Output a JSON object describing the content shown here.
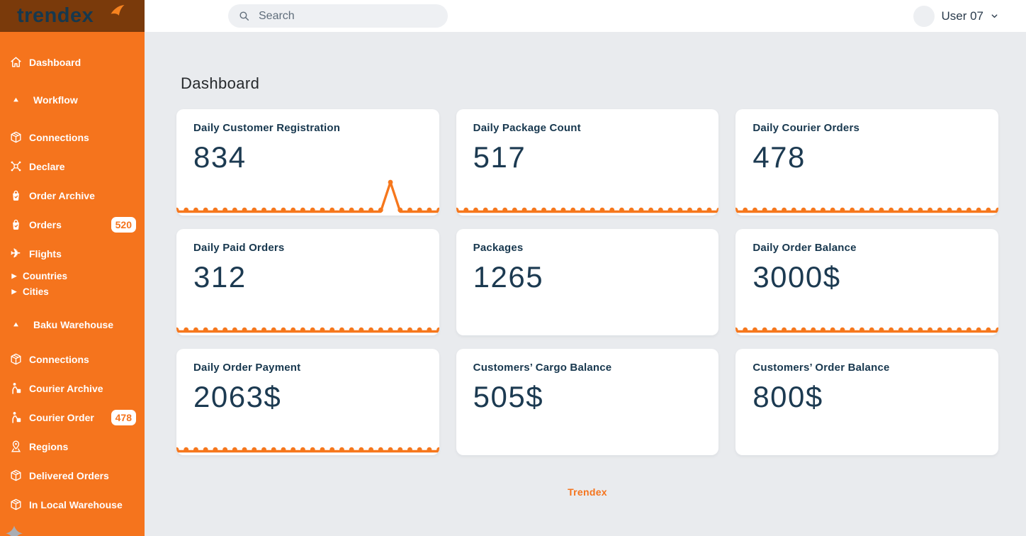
{
  "app": {
    "brand": "trendex",
    "colors": {
      "accent": "#f5741d",
      "navy": "#17374e",
      "logo_bg": "#7a3a0b",
      "sidebar_bg": "#f5741d",
      "content_bg": "#e9ebee"
    }
  },
  "topbar": {
    "search_placeholder": "Search",
    "user_label": "User 07"
  },
  "sidebar": {
    "items": [
      {
        "label": "Dashboard",
        "icon": "home-icon",
        "variant": "active first",
        "badge": null
      },
      {
        "label": "Workflow",
        "icon": "triangle-up-icon",
        "variant": "gap section",
        "badge": null
      },
      {
        "label": "Connections",
        "icon": "package-icon",
        "variant": "gap",
        "badge": null
      },
      {
        "label": "Declare",
        "icon": "drone-icon",
        "variant": "",
        "badge": null
      },
      {
        "label": "Order Archive",
        "icon": "bag-icon",
        "variant": "",
        "badge": null
      },
      {
        "label": "Orders",
        "icon": "bag-icon",
        "variant": "",
        "badge": "520"
      },
      {
        "label": "Flights",
        "icon": "plane-icon",
        "variant": "",
        "badge": null
      },
      {
        "label": "Countries",
        "icon": "caret-right-icon",
        "variant": "sub",
        "badge": null
      },
      {
        "label": "Cities",
        "icon": "caret-right-icon",
        "variant": "sub",
        "badge": null
      },
      {
        "label": "Baku Warehouse",
        "icon": "triangle-up-icon",
        "variant": "gap2 section",
        "badge": null
      },
      {
        "label": "Connections",
        "icon": "package-icon",
        "variant": "gap3",
        "badge": null
      },
      {
        "label": "Courier Archive",
        "icon": "courier-icon",
        "variant": "",
        "badge": null
      },
      {
        "label": "Courier Order",
        "icon": "courier-icon",
        "variant": "",
        "badge": "478"
      },
      {
        "label": "Regions",
        "icon": "map-pin-icon",
        "variant": "",
        "badge": null
      },
      {
        "label": "Delivered Orders",
        "icon": "package-icon",
        "variant": "",
        "badge": null
      },
      {
        "label": "In Local Warehouse",
        "icon": "package-icon",
        "variant": "",
        "badge": null
      }
    ]
  },
  "page": {
    "title": "Dashboard"
  },
  "cards": {
    "spark_color": "#f6771c",
    "items": [
      {
        "title": "Daily Customer Registration",
        "value": "834",
        "spark": [
          0,
          0,
          0,
          0,
          0,
          0,
          0,
          0,
          0,
          0,
          0,
          0,
          0,
          0,
          0,
          0,
          0,
          0,
          0,
          0,
          0,
          0,
          1,
          0,
          0,
          0,
          0,
          0
        ]
      },
      {
        "title": "Daily Package Count",
        "value": "517",
        "spark": [
          0,
          0,
          0,
          0,
          0,
          0,
          0,
          0,
          0,
          0,
          0,
          0,
          0,
          0,
          0,
          0,
          0,
          0,
          0,
          0,
          0,
          0,
          0,
          0,
          0,
          0,
          0,
          0
        ]
      },
      {
        "title": "Daily Courier Orders",
        "value": "478",
        "spark": [
          0,
          0,
          0,
          0,
          0,
          0,
          0,
          0,
          0,
          0,
          0,
          0,
          0,
          0,
          0,
          0,
          0,
          0,
          0,
          0,
          0,
          0,
          0,
          0,
          0,
          0,
          0,
          0
        ]
      },
      {
        "title": "Daily Paid Orders",
        "value": "312",
        "spark": [
          0,
          0,
          0,
          0,
          0,
          0,
          0,
          0,
          0,
          0,
          0,
          0,
          0,
          0,
          0,
          0,
          0,
          0,
          0,
          0,
          0,
          0,
          0,
          0,
          0,
          0,
          0,
          0
        ]
      },
      {
        "title": "Packages",
        "value": "1265",
        "spark": null
      },
      {
        "title": "Daily Order Balance",
        "value": "3000$",
        "spark": [
          0,
          0,
          0,
          0,
          0,
          0,
          0,
          0,
          0,
          0,
          0,
          0,
          0,
          0,
          0,
          0,
          0,
          0,
          0,
          0,
          0,
          0,
          0,
          0,
          0,
          0,
          0,
          0
        ]
      },
      {
        "title": "Daily Order Payment",
        "value": "2063$",
        "spark": [
          0,
          0,
          0,
          0,
          0,
          0,
          0,
          0,
          0,
          0,
          0,
          0,
          0,
          0,
          0,
          0,
          0,
          0,
          0,
          0,
          0,
          0,
          0,
          0,
          0,
          0,
          0,
          0
        ]
      },
      {
        "title": "Customers’ Cargo Balance",
        "value": "505$",
        "spark": null
      },
      {
        "title": "Customers’ Order Balance",
        "value": "800$",
        "spark": null
      }
    ]
  },
  "footer": {
    "brand": "Trendex"
  }
}
